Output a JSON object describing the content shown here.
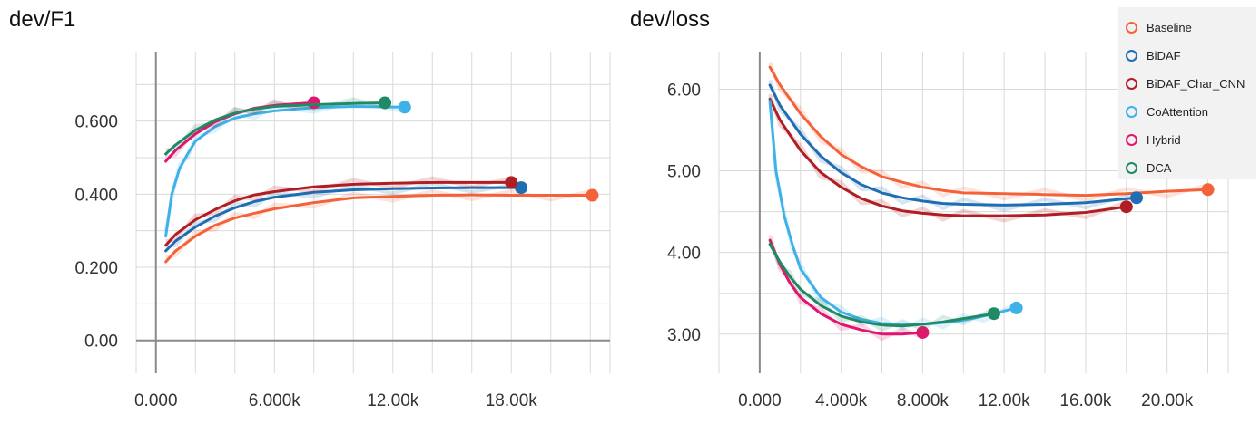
{
  "chart_data": [
    {
      "type": "line",
      "title": "dev/F1",
      "xlabel": "",
      "ylabel": "",
      "xlim": [
        -1000,
        23000
      ],
      "ylim": [
        -0.09,
        0.79
      ],
      "xticks": [
        0,
        6000,
        12000,
        18000
      ],
      "xtick_labels": [
        "0.000",
        "6.000k",
        "12.00k",
        "18.00k"
      ],
      "yticks": [
        0,
        0.2,
        0.4,
        0.6
      ],
      "ytick_labels": [
        "0.00",
        "0.200",
        "0.400",
        "0.600"
      ],
      "grid": true,
      "series": [
        {
          "name": "Baseline",
          "color": "#f4623a",
          "end_marker": true,
          "x": [
            500,
            1000,
            2000,
            3000,
            4000,
            5000,
            6000,
            8000,
            10000,
            12000,
            14000,
            16000,
            18000,
            20000,
            22100
          ],
          "y": [
            0.215,
            0.245,
            0.285,
            0.315,
            0.335,
            0.348,
            0.36,
            0.377,
            0.39,
            0.394,
            0.397,
            0.398,
            0.397,
            0.397,
            0.397
          ]
        },
        {
          "name": "BiDAF",
          "color": "#1f6db3",
          "end_marker": true,
          "x": [
            500,
            1000,
            2000,
            3000,
            4000,
            5000,
            6000,
            8000,
            10000,
            12000,
            14000,
            16000,
            18500
          ],
          "y": [
            0.245,
            0.272,
            0.31,
            0.34,
            0.363,
            0.38,
            0.392,
            0.405,
            0.412,
            0.415,
            0.417,
            0.418,
            0.418
          ]
        },
        {
          "name": "BiDAF_Char_CNN",
          "color": "#b01e24",
          "end_marker": true,
          "x": [
            500,
            1000,
            2000,
            3000,
            4000,
            5000,
            6000,
            8000,
            10000,
            12000,
            14000,
            16000,
            18000
          ],
          "y": [
            0.26,
            0.29,
            0.33,
            0.358,
            0.382,
            0.398,
            0.407,
            0.42,
            0.427,
            0.43,
            0.432,
            0.432,
            0.432
          ]
        },
        {
          "name": "CoAttention",
          "color": "#3db1e8",
          "end_marker": true,
          "x": [
            500,
            800,
            1200,
            1600,
            2000,
            3000,
            4000,
            5000,
            6000,
            8000,
            10000,
            12600
          ],
          "y": [
            0.285,
            0.4,
            0.47,
            0.51,
            0.545,
            0.585,
            0.608,
            0.62,
            0.628,
            0.637,
            0.64,
            0.638
          ]
        },
        {
          "name": "Hybrid",
          "color": "#e0156e",
          "end_marker": true,
          "x": [
            500,
            1000,
            2000,
            3000,
            4000,
            5000,
            6000,
            7000,
            8000
          ],
          "y": [
            0.49,
            0.52,
            0.565,
            0.598,
            0.62,
            0.635,
            0.643,
            0.647,
            0.65
          ]
        },
        {
          "name": "DCA",
          "color": "#1f8a63",
          "end_marker": true,
          "x": [
            500,
            1000,
            2000,
            3000,
            4000,
            5000,
            6000,
            8000,
            10000,
            11600
          ],
          "y": [
            0.51,
            0.535,
            0.575,
            0.603,
            0.622,
            0.633,
            0.64,
            0.645,
            0.648,
            0.65
          ]
        }
      ]
    },
    {
      "type": "line",
      "title": "dev/loss",
      "xlabel": "",
      "ylabel": "",
      "xlim": [
        -2000,
        23000
      ],
      "ylim": [
        2.52,
        6.46
      ],
      "xticks": [
        0,
        4000,
        8000,
        12000,
        16000,
        20000
      ],
      "xtick_labels": [
        "0.000",
        "4.000k",
        "8.000k",
        "12.00k",
        "16.00k",
        "20.00k"
      ],
      "yticks": [
        3,
        4,
        5,
        6
      ],
      "ytick_labels": [
        "3.00",
        "4.00",
        "5.00",
        "6.00"
      ],
      "grid": true,
      "series": [
        {
          "name": "Baseline",
          "color": "#f4623a",
          "end_marker": true,
          "x": [
            500,
            1000,
            2000,
            3000,
            4000,
            5000,
            6000,
            7000,
            8000,
            9000,
            10000,
            12000,
            14000,
            16000,
            18000,
            20000,
            22000
          ],
          "y": [
            6.27,
            6.05,
            5.7,
            5.42,
            5.2,
            5.05,
            4.93,
            4.86,
            4.8,
            4.76,
            4.73,
            4.72,
            4.71,
            4.7,
            4.72,
            4.75,
            4.77
          ]
        },
        {
          "name": "BiDAF",
          "color": "#1f6db3",
          "end_marker": true,
          "x": [
            500,
            1000,
            2000,
            3000,
            4000,
            5000,
            6000,
            7000,
            8000,
            9000,
            10000,
            12000,
            14000,
            16000,
            18500
          ],
          "y": [
            6.05,
            5.8,
            5.45,
            5.18,
            4.98,
            4.83,
            4.73,
            4.67,
            4.63,
            4.6,
            4.59,
            4.58,
            4.59,
            4.61,
            4.67
          ]
        },
        {
          "name": "BiDAF_Char_CNN",
          "color": "#b01e24",
          "end_marker": true,
          "x": [
            500,
            1000,
            2000,
            3000,
            4000,
            5000,
            6000,
            7000,
            8000,
            9000,
            10000,
            12000,
            14000,
            16000,
            18000
          ],
          "y": [
            5.88,
            5.62,
            5.25,
            4.98,
            4.8,
            4.66,
            4.57,
            4.51,
            4.48,
            4.46,
            4.45,
            4.45,
            4.46,
            4.49,
            4.56
          ]
        },
        {
          "name": "CoAttention",
          "color": "#3db1e8",
          "end_marker": true,
          "x": [
            500,
            800,
            1200,
            1600,
            2000,
            3000,
            4000,
            5000,
            6000,
            7000,
            8000,
            9000,
            10000,
            11000,
            12600
          ],
          "y": [
            5.85,
            5.0,
            4.45,
            4.1,
            3.8,
            3.45,
            3.27,
            3.18,
            3.13,
            3.12,
            3.12,
            3.14,
            3.17,
            3.22,
            3.32
          ]
        },
        {
          "name": "Hybrid",
          "color": "#e0156e",
          "end_marker": true,
          "x": [
            500,
            1000,
            1500,
            2000,
            3000,
            4000,
            5000,
            6000,
            7000,
            8000
          ],
          "y": [
            4.15,
            3.85,
            3.62,
            3.45,
            3.25,
            3.12,
            3.05,
            3.0,
            3.0,
            3.02
          ]
        },
        {
          "name": "DCA",
          "color": "#1f8a63",
          "end_marker": true,
          "x": [
            500,
            1000,
            1500,
            2000,
            3000,
            4000,
            5000,
            6000,
            7000,
            8000,
            9000,
            10000,
            11500
          ],
          "y": [
            4.1,
            3.88,
            3.7,
            3.55,
            3.35,
            3.22,
            3.15,
            3.11,
            3.1,
            3.12,
            3.15,
            3.19,
            3.25
          ]
        }
      ]
    }
  ],
  "legend": {
    "placement": "top-right",
    "items": [
      {
        "label": "Baseline",
        "color": "#f4623a"
      },
      {
        "label": "BiDAF",
        "color": "#1f6db3"
      },
      {
        "label": "BiDAF_Char_CNN",
        "color": "#b01e24"
      },
      {
        "label": "CoAttention",
        "color": "#3db1e8"
      },
      {
        "label": "Hybrid",
        "color": "#e0156e"
      },
      {
        "label": "DCA",
        "color": "#1f8a63"
      }
    ]
  }
}
